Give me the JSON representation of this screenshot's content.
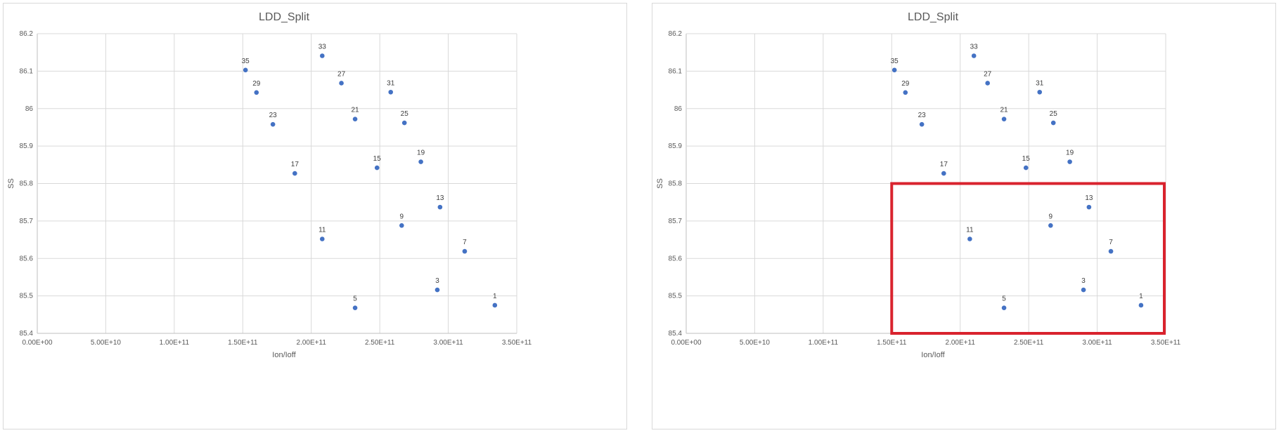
{
  "chart_data": [
    {
      "type": "scatter",
      "title": "LDD_Split",
      "xlabel": "Ion/Ioff",
      "ylabel": "SS",
      "xlim": [
        0,
        350000000000
      ],
      "ylim": [
        85.4,
        86.2
      ],
      "x_ticks": [
        "0.00E+00",
        "5.00E+10",
        "1.00E+11",
        "1.50E+11",
        "2.00E+11",
        "2.50E+11",
        "3.00E+11",
        "3.50E+11"
      ],
      "y_ticks": [
        "85.4",
        "85.5",
        "85.6",
        "85.7",
        "85.8",
        "85.9",
        "86",
        "86.1",
        "86.2"
      ],
      "grid": true,
      "marker_color": "#4472c4",
      "points": [
        {
          "label": "35",
          "x": 152000000000,
          "y": 86.103
        },
        {
          "label": "33",
          "x": 208000000000,
          "y": 86.141
        },
        {
          "label": "29",
          "x": 160000000000,
          "y": 86.043
        },
        {
          "label": "27",
          "x": 222000000000,
          "y": 86.068
        },
        {
          "label": "31",
          "x": 258000000000,
          "y": 86.044
        },
        {
          "label": "23",
          "x": 172000000000,
          "y": 85.958
        },
        {
          "label": "21",
          "x": 232000000000,
          "y": 85.972
        },
        {
          "label": "25",
          "x": 268000000000,
          "y": 85.962
        },
        {
          "label": "17",
          "x": 188000000000,
          "y": 85.827
        },
        {
          "label": "15",
          "x": 248000000000,
          "y": 85.842
        },
        {
          "label": "19",
          "x": 280000000000,
          "y": 85.858
        },
        {
          "label": "13",
          "x": 294000000000,
          "y": 85.737
        },
        {
          "label": "9",
          "x": 266000000000,
          "y": 85.688
        },
        {
          "label": "11",
          "x": 208000000000,
          "y": 85.652
        },
        {
          "label": "7",
          "x": 312000000000,
          "y": 85.619
        },
        {
          "label": "3",
          "x": 292000000000,
          "y": 85.516
        },
        {
          "label": "5",
          "x": 232000000000,
          "y": 85.468
        },
        {
          "label": "1",
          "x": 334000000000,
          "y": 85.475
        }
      ]
    },
    {
      "type": "scatter",
      "title": "LDD_Split",
      "xlabel": "Ion/Ioff",
      "ylabel": "SS",
      "xlim": [
        0,
        350000000000
      ],
      "ylim": [
        85.4,
        86.2
      ],
      "x_ticks": [
        "0.00E+00",
        "5.00E+10",
        "1.00E+11",
        "1.50E+11",
        "2.00E+11",
        "2.50E+11",
        "3.00E+11",
        "3.50E+11"
      ],
      "y_ticks": [
        "85.4",
        "85.5",
        "85.6",
        "85.7",
        "85.8",
        "85.9",
        "86",
        "86.1",
        "86.2"
      ],
      "grid": true,
      "marker_color": "#4472c4",
      "highlight_box": {
        "x_range": [
          150000000000,
          350000000000
        ],
        "y_range": [
          85.4,
          85.8
        ],
        "color": "#d9232e"
      },
      "points": [
        {
          "label": "35",
          "x": 152000000000,
          "y": 86.103
        },
        {
          "label": "33",
          "x": 210000000000,
          "y": 86.141
        },
        {
          "label": "29",
          "x": 160000000000,
          "y": 86.043
        },
        {
          "label": "27",
          "x": 220000000000,
          "y": 86.068
        },
        {
          "label": "31",
          "x": 258000000000,
          "y": 86.044
        },
        {
          "label": "23",
          "x": 172000000000,
          "y": 85.958
        },
        {
          "label": "21",
          "x": 232000000000,
          "y": 85.972
        },
        {
          "label": "25",
          "x": 268000000000,
          "y": 85.962
        },
        {
          "label": "17",
          "x": 188000000000,
          "y": 85.827
        },
        {
          "label": "15",
          "x": 248000000000,
          "y": 85.842
        },
        {
          "label": "19",
          "x": 280000000000,
          "y": 85.858
        },
        {
          "label": "13",
          "x": 294000000000,
          "y": 85.737
        },
        {
          "label": "9",
          "x": 266000000000,
          "y": 85.688
        },
        {
          "label": "11",
          "x": 207000000000,
          "y": 85.652
        },
        {
          "label": "7",
          "x": 310000000000,
          "y": 85.619
        },
        {
          "label": "3",
          "x": 290000000000,
          "y": 85.516
        },
        {
          "label": "5",
          "x": 232000000000,
          "y": 85.468
        },
        {
          "label": "1",
          "x": 332000000000,
          "y": 85.475
        }
      ]
    }
  ]
}
